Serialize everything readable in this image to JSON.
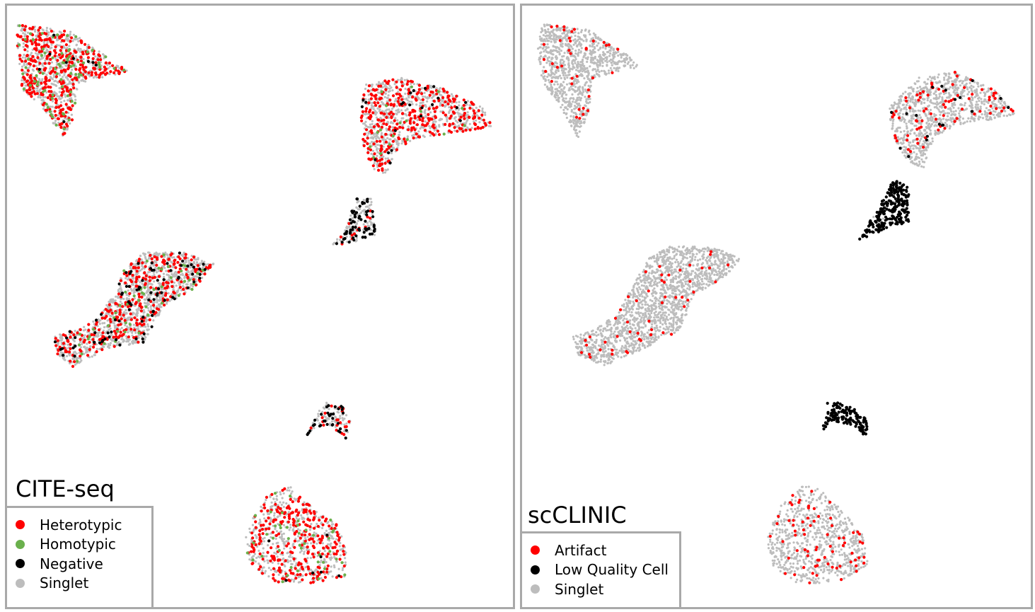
{
  "colors": {
    "heterotypic": "#ff0000",
    "homotypic": "#6ab04c",
    "negative": "#000000",
    "singlet": "#bdbdbd",
    "artifact": "#ff0000",
    "low_quality_cell": "#000000",
    "panel_border": "#a9a9a9"
  },
  "chart_data": [
    {
      "type": "scatter",
      "title": "CITE-seq",
      "xlabel": "",
      "ylabel": "",
      "grid": false,
      "legend_position": "bottom-left",
      "legend": [
        {
          "label": "Heterotypic",
          "color": "#ff0000"
        },
        {
          "label": "Homotypic",
          "color": "#6ab04c"
        },
        {
          "label": "Negative",
          "color": "#000000"
        },
        {
          "label": "Singlet",
          "color": "#bdbdbd"
        }
      ],
      "series": [
        {
          "name": "Singlet",
          "color": "#bdbdbd"
        },
        {
          "name": "Heterotypic",
          "color": "#ff0000"
        },
        {
          "name": "Homotypic",
          "color": "#6ab04c"
        },
        {
          "name": "Negative",
          "color": "#000000"
        }
      ],
      "clusters": [
        {
          "id": "top-left",
          "outline": [
            [
              0.02,
              0.03
            ],
            [
              0.12,
              0.04
            ],
            [
              0.24,
              0.11
            ],
            [
              0.14,
              0.13
            ],
            [
              0.13,
              0.19
            ],
            [
              0.11,
              0.22
            ],
            [
              0.07,
              0.17
            ],
            [
              0.03,
              0.14
            ],
            [
              0.02,
              0.07
            ]
          ],
          "mix": {
            "Singlet": 0.62,
            "Heterotypic": 0.3,
            "Homotypic": 0.07,
            "Negative": 0.01
          }
        },
        {
          "id": "top-right",
          "outline": [
            [
              0.71,
              0.13
            ],
            [
              0.78,
              0.12
            ],
            [
              0.87,
              0.14
            ],
            [
              0.94,
              0.17
            ],
            [
              0.96,
              0.2
            ],
            [
              0.9,
              0.21
            ],
            [
              0.81,
              0.22
            ],
            [
              0.77,
              0.24
            ],
            [
              0.75,
              0.28
            ],
            [
              0.72,
              0.27
            ],
            [
              0.7,
              0.22
            ],
            [
              0.7,
              0.17
            ]
          ],
          "mix": {
            "Singlet": 0.68,
            "Heterotypic": 0.27,
            "Homotypic": 0.03,
            "Negative": 0.02
          }
        },
        {
          "id": "middle-small",
          "outline": [
            [
              0.69,
              0.32
            ],
            [
              0.72,
              0.32
            ],
            [
              0.73,
              0.38
            ],
            [
              0.7,
              0.39
            ],
            [
              0.64,
              0.4
            ],
            [
              0.67,
              0.37
            ]
          ],
          "mix": {
            "Singlet": 0.55,
            "Heterotypic": 0.08,
            "Homotypic": 0.0,
            "Negative": 0.37
          }
        },
        {
          "id": "middle-left",
          "outline": [
            [
              0.27,
              0.41
            ],
            [
              0.35,
              0.41
            ],
            [
              0.41,
              0.43
            ],
            [
              0.37,
              0.47
            ],
            [
              0.31,
              0.5
            ],
            [
              0.27,
              0.56
            ],
            [
              0.2,
              0.57
            ],
            [
              0.13,
              0.6
            ],
            [
              0.1,
              0.58
            ],
            [
              0.09,
              0.55
            ],
            [
              0.13,
              0.54
            ],
            [
              0.18,
              0.52
            ],
            [
              0.21,
              0.48
            ],
            [
              0.23,
              0.44
            ]
          ],
          "mix": {
            "Singlet": 0.72,
            "Heterotypic": 0.18,
            "Homotypic": 0.04,
            "Negative": 0.06
          }
        },
        {
          "id": "arc",
          "outline": [
            [
              0.61,
              0.68
            ],
            [
              0.63,
              0.66
            ],
            [
              0.66,
              0.66
            ],
            [
              0.68,
              0.69
            ],
            [
              0.67,
              0.72
            ],
            [
              0.64,
              0.7
            ],
            [
              0.61,
              0.7
            ],
            [
              0.59,
              0.72
            ]
          ],
          "mix": {
            "Singlet": 0.6,
            "Heterotypic": 0.12,
            "Homotypic": 0.0,
            "Negative": 0.28
          }
        },
        {
          "id": "bottom",
          "outline": [
            [
              0.52,
              0.81
            ],
            [
              0.56,
              0.8
            ],
            [
              0.61,
              0.84
            ],
            [
              0.65,
              0.86
            ],
            [
              0.67,
              0.9
            ],
            [
              0.67,
              0.95
            ],
            [
              0.6,
              0.96
            ],
            [
              0.53,
              0.96
            ],
            [
              0.48,
              0.93
            ],
            [
              0.47,
              0.89
            ],
            [
              0.49,
              0.84
            ]
          ],
          "mix": {
            "Singlet": 0.62,
            "Heterotypic": 0.32,
            "Homotypic": 0.05,
            "Negative": 0.01
          }
        }
      ]
    },
    {
      "type": "scatter",
      "title": "scCLINIC",
      "xlabel": "",
      "ylabel": "",
      "grid": false,
      "legend_position": "bottom-left",
      "legend": [
        {
          "label": "Artifact",
          "color": "#ff0000"
        },
        {
          "label": "Low Quality Cell",
          "color": "#000000"
        },
        {
          "label": "Singlet",
          "color": "#bdbdbd"
        }
      ],
      "series": [
        {
          "name": "Singlet",
          "color": "#bdbdbd"
        },
        {
          "name": "Artifact",
          "color": "#ff0000"
        },
        {
          "name": "Low Quality Cell",
          "color": "#000000"
        }
      ],
      "clusters": [
        {
          "id": "top-left",
          "outline": [
            [
              0.04,
              0.03
            ],
            [
              0.13,
              0.04
            ],
            [
              0.24,
              0.1
            ],
            [
              0.14,
              0.12
            ],
            [
              0.13,
              0.18
            ],
            [
              0.11,
              0.22
            ],
            [
              0.07,
              0.16
            ],
            [
              0.04,
              0.13
            ],
            [
              0.03,
              0.07
            ]
          ],
          "mix": {
            "Singlet": 0.97,
            "Artifact": 0.03,
            "Low Quality Cell": 0.0
          }
        },
        {
          "id": "top-right",
          "outline": [
            [
              0.78,
              0.12
            ],
            [
              0.85,
              0.11
            ],
            [
              0.93,
              0.14
            ],
            [
              0.97,
              0.18
            ],
            [
              0.92,
              0.19
            ],
            [
              0.85,
              0.2
            ],
            [
              0.81,
              0.22
            ],
            [
              0.79,
              0.27
            ],
            [
              0.76,
              0.26
            ],
            [
              0.73,
              0.22
            ],
            [
              0.72,
              0.17
            ]
          ],
          "mix": {
            "Singlet": 0.9,
            "Artifact": 0.08,
            "Low Quality Cell": 0.02
          }
        },
        {
          "id": "middle-small",
          "outline": [
            [
              0.73,
              0.29
            ],
            [
              0.76,
              0.3
            ],
            [
              0.76,
              0.36
            ],
            [
              0.72,
              0.37
            ],
            [
              0.66,
              0.39
            ],
            [
              0.69,
              0.35
            ]
          ],
          "mix": {
            "Singlet": 0.05,
            "Artifact": 0.0,
            "Low Quality Cell": 0.95
          }
        },
        {
          "id": "middle-left",
          "outline": [
            [
              0.29,
              0.4
            ],
            [
              0.37,
              0.4
            ],
            [
              0.43,
              0.42
            ],
            [
              0.4,
              0.45
            ],
            [
              0.34,
              0.48
            ],
            [
              0.31,
              0.54
            ],
            [
              0.24,
              0.57
            ],
            [
              0.16,
              0.6
            ],
            [
              0.11,
              0.58
            ],
            [
              0.1,
              0.55
            ],
            [
              0.14,
              0.54
            ],
            [
              0.19,
              0.51
            ],
            [
              0.22,
              0.46
            ],
            [
              0.25,
              0.42
            ]
          ],
          "mix": {
            "Singlet": 0.97,
            "Artifact": 0.03,
            "Low Quality Cell": 0.0
          }
        },
        {
          "id": "arc",
          "outline": [
            [
              0.6,
              0.66
            ],
            [
              0.64,
              0.66
            ],
            [
              0.68,
              0.69
            ],
            [
              0.68,
              0.72
            ],
            [
              0.65,
              0.7
            ],
            [
              0.61,
              0.69
            ],
            [
              0.59,
              0.71
            ]
          ],
          "mix": {
            "Singlet": 0.0,
            "Artifact": 0.0,
            "Low Quality Cell": 1.0
          }
        },
        {
          "id": "bottom",
          "outline": [
            [
              0.55,
              0.8
            ],
            [
              0.58,
              0.8
            ],
            [
              0.63,
              0.84
            ],
            [
              0.67,
              0.88
            ],
            [
              0.68,
              0.93
            ],
            [
              0.62,
              0.96
            ],
            [
              0.54,
              0.96
            ],
            [
              0.49,
              0.93
            ],
            [
              0.48,
              0.88
            ],
            [
              0.51,
              0.83
            ]
          ],
          "mix": {
            "Singlet": 0.9,
            "Artifact": 0.1,
            "Low Quality Cell": 0.0
          }
        }
      ]
    }
  ]
}
